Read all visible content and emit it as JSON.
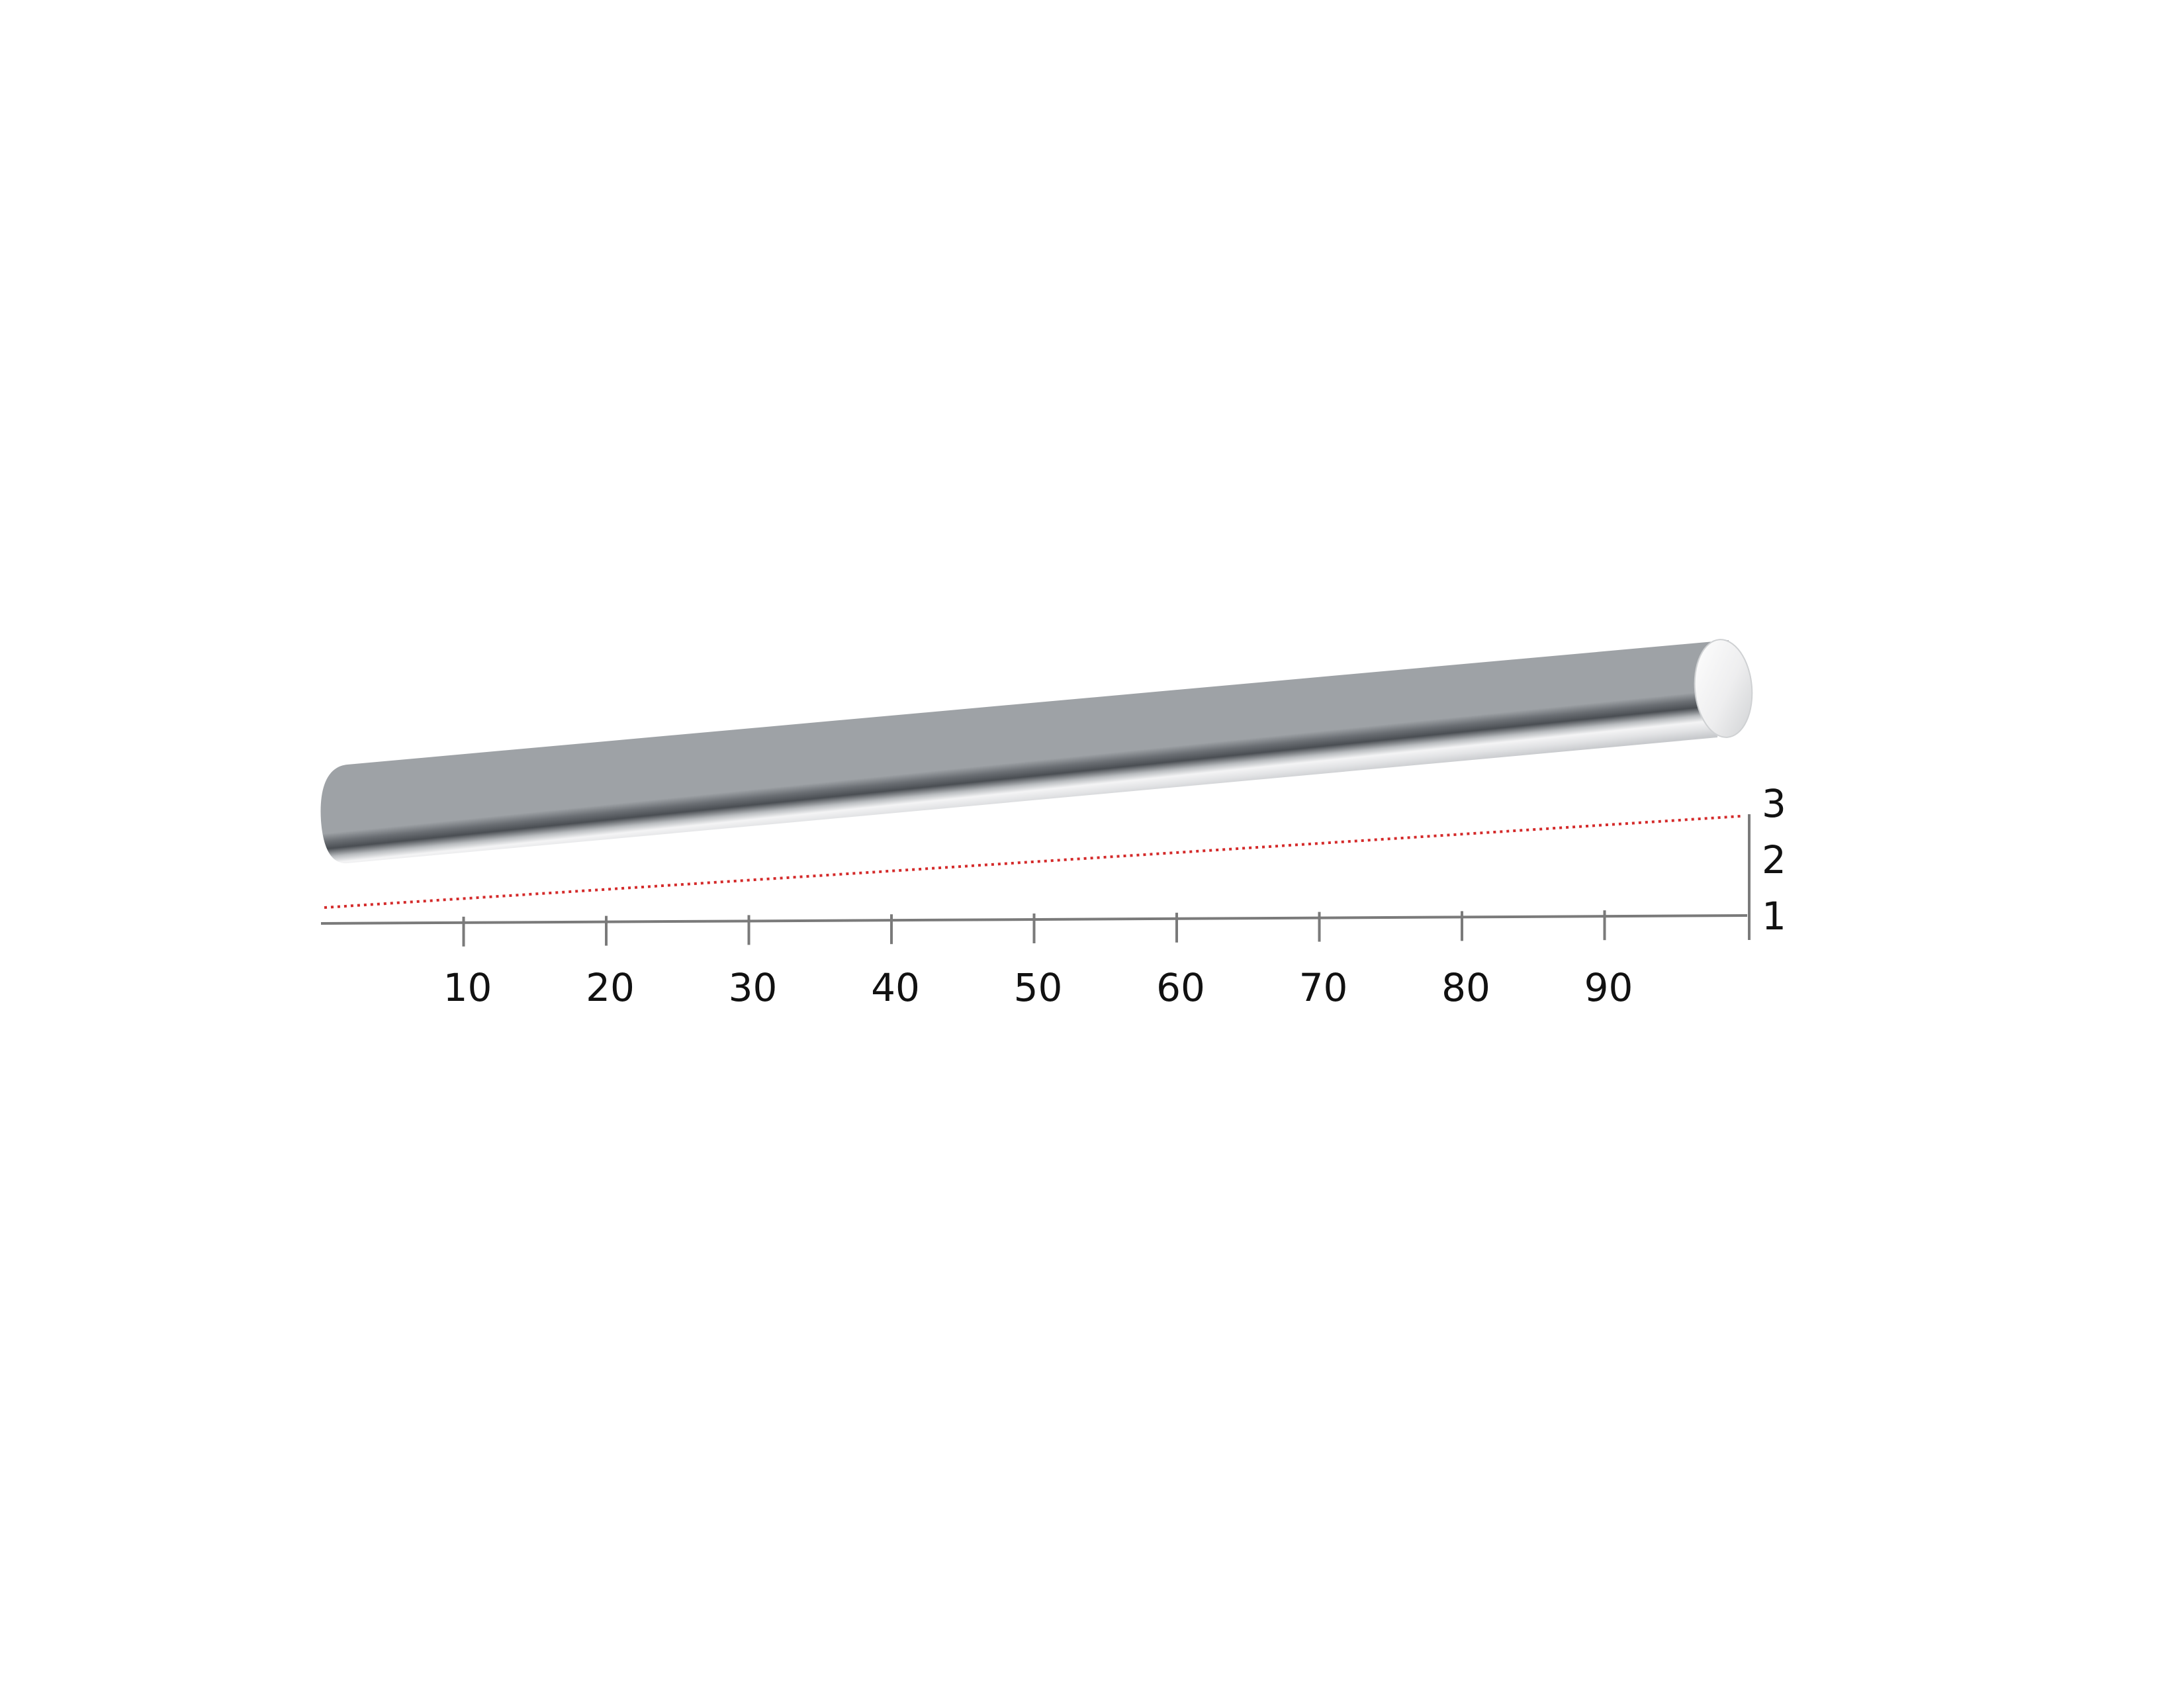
{
  "colors": {
    "background": "#ffffff",
    "axis": "#7a7a7a",
    "trend_line": "#d42a2a",
    "rod_light": "#f4f4f5",
    "rod_dark": "#4a4e53"
  },
  "rod": {
    "icon": "metal-rod-cylinder"
  },
  "x_axis": {
    "ticks": [
      "10",
      "20",
      "30",
      "40",
      "50",
      "60",
      "70",
      "80",
      "90"
    ]
  },
  "y_axis": {
    "ticks": [
      "1",
      "2",
      "3"
    ]
  },
  "trend_line": {
    "style": "dotted",
    "from_value": 1.3,
    "to_value": 3.0
  }
}
